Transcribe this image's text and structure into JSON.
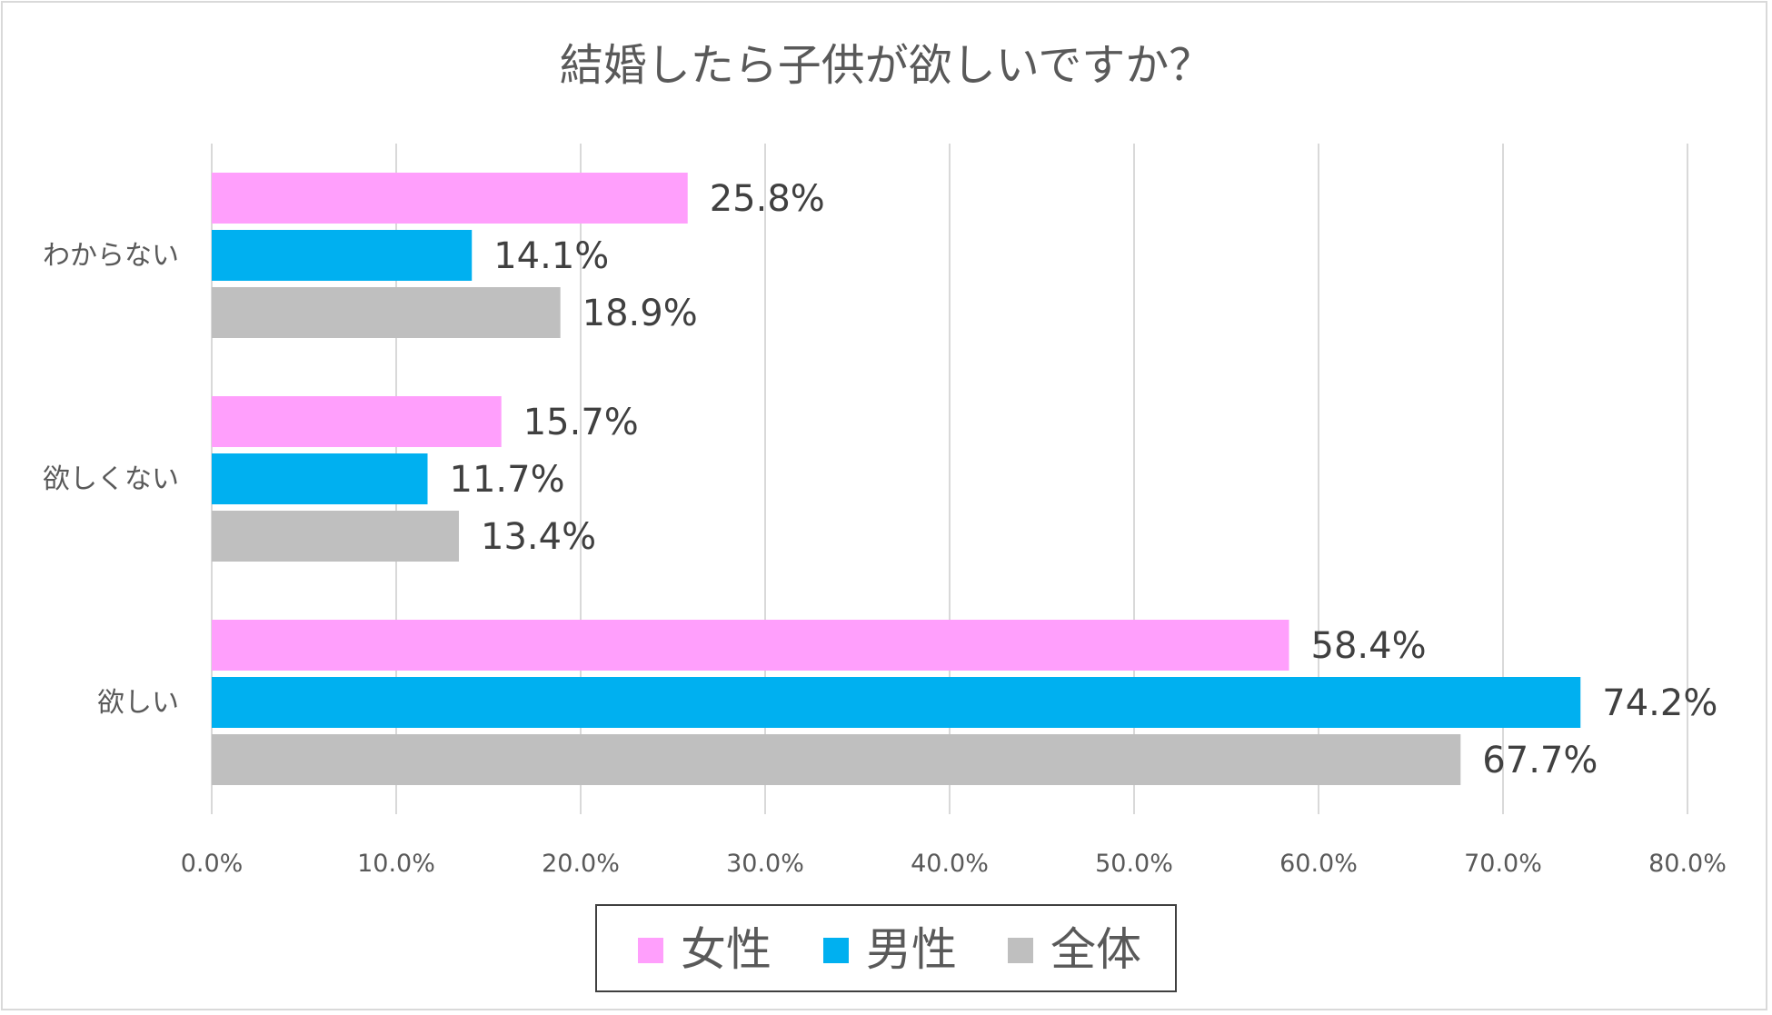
{
  "chart_data": {
    "type": "bar",
    "orientation": "horizontal",
    "title": "結婚したら子供が欲しいですか？",
    "categories": [
      "わからない",
      "欲しくない",
      "欲しい"
    ],
    "series": [
      {
        "name": "女性",
        "color": "#ff9ffc",
        "values": [
          25.8,
          15.7,
          58.4
        ],
        "labels": [
          "25.8%",
          "15.7%",
          "58.4%"
        ]
      },
      {
        "name": "男性",
        "color": "#00b0f0",
        "values": [
          14.1,
          11.7,
          74.2
        ],
        "labels": [
          "14.1%",
          "11.7%",
          "74.2%"
        ]
      },
      {
        "name": "全体",
        "color": "#bfbfbf",
        "values": [
          18.9,
          13.4,
          67.7
        ],
        "labels": [
          "18.9%",
          "13.4%",
          "67.7%"
        ]
      }
    ],
    "xlim": [
      0,
      80
    ],
    "xticks": [
      "0.0%",
      "10.0%",
      "20.0%",
      "30.0%",
      "40.0%",
      "50.0%",
      "60.0%",
      "70.0%",
      "80.0%"
    ],
    "grid": true,
    "legend": "bottom",
    "xlabel": "",
    "ylabel": ""
  }
}
